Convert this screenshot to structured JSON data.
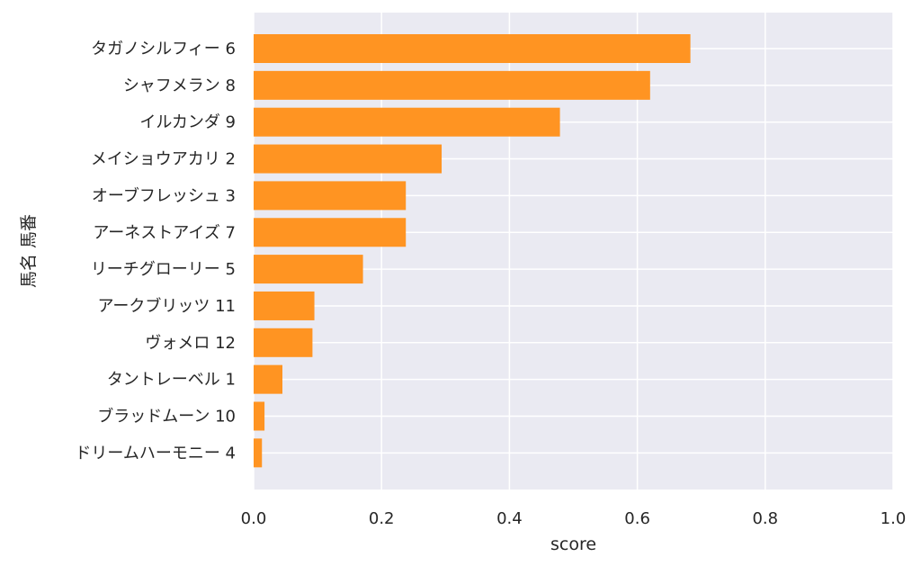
{
  "chart_data": {
    "type": "bar",
    "orientation": "horizontal",
    "xlabel": "score",
    "ylabel": "馬名 馬番",
    "xlim": [
      0.0,
      1.0
    ],
    "x_ticks": [
      "0.0",
      "0.2",
      "0.4",
      "0.6",
      "0.8",
      "1.0"
    ],
    "x_tick_values": [
      0.0,
      0.2,
      0.4,
      0.6,
      0.8,
      1.0
    ],
    "grid": true,
    "style": "seaborn-darkgrid",
    "colors": {
      "bar": "#ff9422",
      "plot_background": "#eaeaf2",
      "grid": "#ffffff"
    },
    "categories": [
      "タガノシルフィー 6",
      "シャフメラン 8",
      "イルカンダ 9",
      "メイショウアカリ 2",
      "オーブフレッシュ 3",
      "アーネストアイズ 7",
      "リーチグローリー 5",
      "アークブリッツ 11",
      "ヴォメロ 12",
      "タントレーベル 1",
      "ブラッドムーン 10",
      "ドリームハーモニー 4"
    ],
    "values": [
      0.683,
      0.62,
      0.479,
      0.294,
      0.238,
      0.238,
      0.171,
      0.095,
      0.092,
      0.045,
      0.017,
      0.013
    ]
  }
}
